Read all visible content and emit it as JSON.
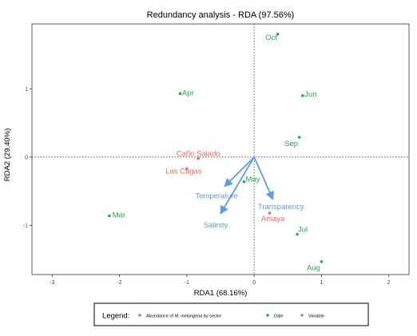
{
  "chart_data": {
    "type": "scatter",
    "title": "Redundancy analysis - RDA (97.56%)",
    "xlabel": "RDA1 (68.16%)",
    "ylabel": "RDA2 (29.40%)",
    "xlim": [
      -3.3,
      2.3
    ],
    "ylim": [
      -1.72,
      1.95
    ],
    "x_ticks": [
      -3,
      -2,
      -1,
      0,
      1,
      2
    ],
    "y_ticks": [
      -1,
      0,
      1
    ],
    "x_tick_labels": [
      "-3",
      "-2",
      "-1",
      "0",
      "1",
      "2"
    ],
    "y_tick_labels": [
      "-1",
      "0",
      "1"
    ],
    "grid": false,
    "reference_lines": {
      "x": 0,
      "y": 0,
      "style": "dotted"
    },
    "legend": {
      "placement": "bottom",
      "title": "Legend:",
      "entries": [
        {
          "label_prefix": "Abundance of ",
          "label_italic": "M. melongena",
          "label_suffix": " by sector",
          "color": "#f0665e"
        },
        {
          "label": "Date",
          "color": "#1bb24b"
        },
        {
          "label": "Variable",
          "color": "#5b9bef"
        }
      ]
    },
    "series": [
      {
        "name": "Abundance of M. melongena by sector",
        "color": "#f0665e",
        "points": [
          {
            "label": "Caño Salado",
            "x": -0.83,
            "y": -0.02,
            "show_point": true
          },
          {
            "label": "Las Cagas",
            "x": -1.0,
            "y": -0.17,
            "show_point": true
          },
          {
            "label": "Amaya",
            "x": 0.23,
            "y": -0.82,
            "show_point": true
          }
        ]
      },
      {
        "name": "Date",
        "color": "#1bb24b",
        "points": [
          {
            "label": "Oct",
            "x": 0.35,
            "y": 1.8
          },
          {
            "label": "Apr",
            "x": -1.1,
            "y": 0.93
          },
          {
            "label": "Jun",
            "x": 0.72,
            "y": 0.9
          },
          {
            "label": "Sep",
            "x": 0.67,
            "y": 0.29
          },
          {
            "label": "May",
            "x": -0.15,
            "y": -0.36
          },
          {
            "label": "Mar",
            "x": -2.15,
            "y": -0.86
          },
          {
            "label": "Jul",
            "x": 0.64,
            "y": -1.13
          },
          {
            "label": "Aug",
            "x": 1.0,
            "y": -1.53
          }
        ]
      }
    ],
    "vectors": {
      "name": "Variable",
      "color": "#5b9bef",
      "origin": [
        0,
        0
      ],
      "arrows": [
        {
          "label": "Temperature",
          "x": -0.44,
          "y": -0.43
        },
        {
          "label": "Salinity",
          "x": -0.5,
          "y": -0.83
        },
        {
          "label": "Transparency",
          "x": 0.28,
          "y": -0.62
        }
      ]
    }
  }
}
